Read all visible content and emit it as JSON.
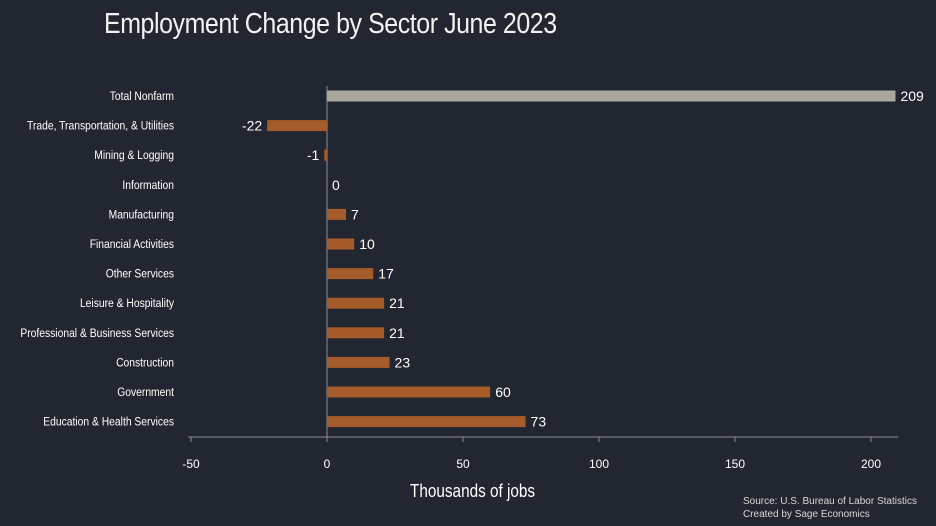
{
  "title": "Employment Change by Sector June 2023",
  "chart_data": {
    "type": "bar",
    "orientation": "horizontal",
    "categories": [
      "Total Nonfarm",
      "Trade, Transportation, & Utilities",
      "Mining & Logging",
      "Information",
      "Manufacturing",
      "Financial Activities",
      "Other Services",
      "Leisure & Hospitality",
      "Professional & Business Services",
      "Construction",
      "Government",
      "Education & Health Services"
    ],
    "values": [
      209,
      -22,
      -1,
      0,
      7,
      10,
      17,
      21,
      21,
      23,
      60,
      73
    ],
    "data_labels": [
      "209",
      "-22",
      "-1",
      "0",
      "7",
      "10",
      "17",
      "21",
      "21",
      "23",
      "60",
      "73"
    ],
    "bar_colors": [
      "#a9a79b",
      "#a65c2a",
      "#a65c2a",
      "#a65c2a",
      "#a65c2a",
      "#a65c2a",
      "#a65c2a",
      "#a65c2a",
      "#a65c2a",
      "#a65c2a",
      "#a65c2a",
      "#a65c2a"
    ],
    "xlabel": "Thousands of jobs",
    "ylabel": "",
    "xlim": [
      -50,
      210
    ],
    "xticks": [
      -50,
      0,
      50,
      100,
      150,
      200
    ],
    "xtick_labels": [
      "-50",
      "0",
      "50",
      "100",
      "150",
      "200"
    ],
    "grid": false,
    "legend": "none"
  },
  "source_lines": [
    "Source: U.S. Bureau of Labor Statistics",
    "Created by Sage Economics"
  ],
  "colors": {
    "background": "#222630",
    "axis": "#8a8d93",
    "total_bar": "#a9a79b",
    "sector_bar": "#a65c2a"
  }
}
